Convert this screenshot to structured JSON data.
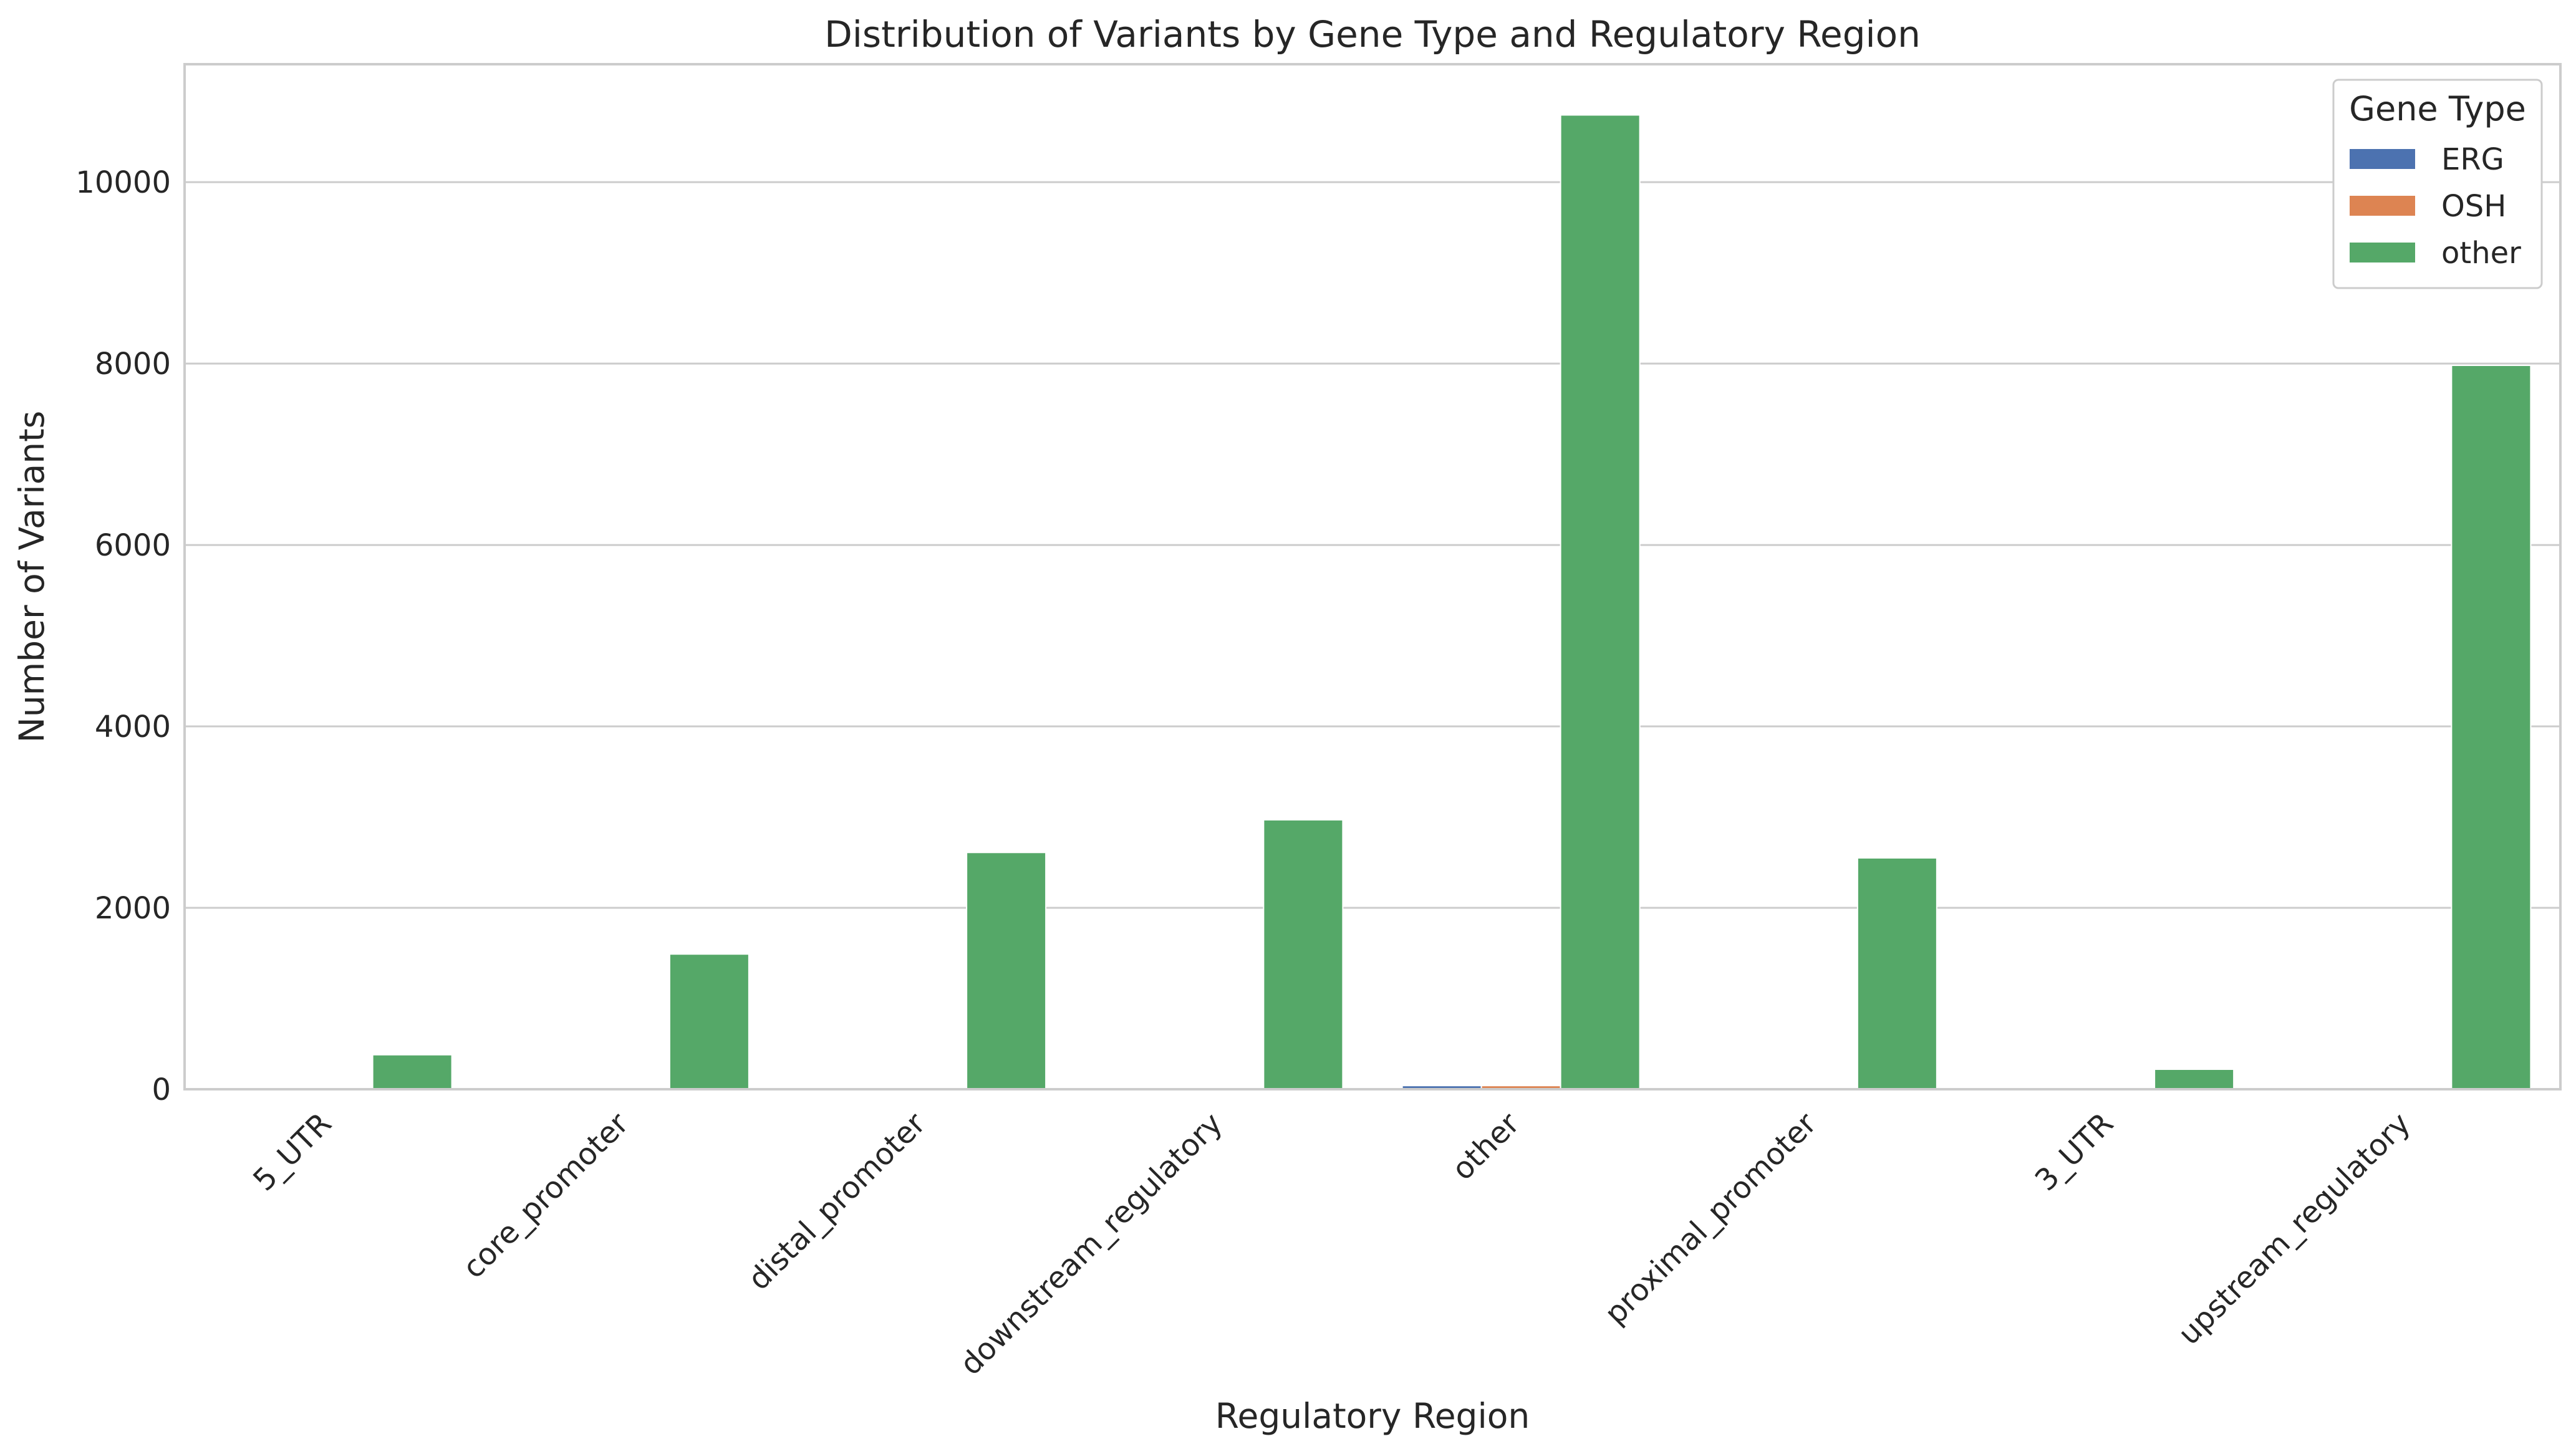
{
  "chart_data": {
    "type": "bar",
    "title": "Distribution of Variants by Gene Type and Regulatory Region",
    "xlabel": "Regulatory Region",
    "ylabel": "Number of Variants",
    "categories": [
      "5_UTR",
      "core_promoter",
      "distal_promoter",
      "downstream_regulatory",
      "other",
      "proximal_promoter",
      "3_UTR",
      "upstream_regulatory"
    ],
    "series": [
      {
        "name": "ERG",
        "color": "#4c72b0",
        "values": [
          0,
          0,
          0,
          0,
          40,
          0,
          0,
          0
        ]
      },
      {
        "name": "OSH",
        "color": "#dd8452",
        "values": [
          0,
          0,
          0,
          0,
          40,
          0,
          0,
          0
        ]
      },
      {
        "name": "other",
        "color": "#55a868",
        "values": [
          380,
          1490,
          2610,
          2970,
          10740,
          2550,
          220,
          7980
        ]
      }
    ],
    "yticks": [
      0,
      2000,
      4000,
      6000,
      8000,
      10000
    ],
    "ylim": [
      0,
      11300
    ],
    "grid": "horizontal",
    "legend": {
      "title": "Gene Type",
      "placement": "top-right"
    }
  }
}
